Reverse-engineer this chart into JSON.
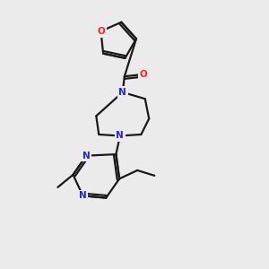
{
  "background_color": "#ebebeb",
  "bond_color": "#1a1a1a",
  "N_color": "#2020ff",
  "O_color": "#ff2020",
  "line_width": 1.6,
  "figsize": [
    3.0,
    3.0
  ],
  "dpi": 100,
  "xlim": [
    0,
    10
  ],
  "ylim": [
    0,
    10
  ]
}
